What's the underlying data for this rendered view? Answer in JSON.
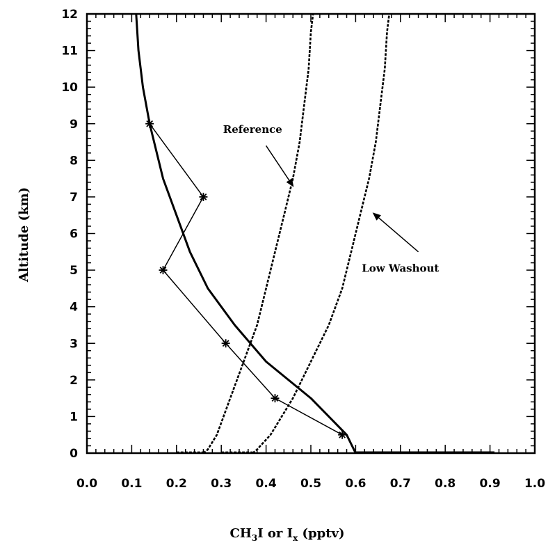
{
  "chart_data": {
    "type": "line",
    "xlabel": {
      "main": "CH",
      "sub1": "3",
      "mid": "I or I",
      "sub2": "x",
      "tail": " (pptv)"
    },
    "ylabel": "Altitude (km)",
    "xlim": [
      0.0,
      1.0
    ],
    "ylim": [
      0,
      12
    ],
    "x_ticks": [
      "0.0",
      "0.1",
      "0.2",
      "0.3",
      "0.4",
      "0.5",
      "0.6",
      "0.7",
      "0.8",
      "0.9",
      "1.0"
    ],
    "y_ticks": [
      "0",
      "1",
      "2",
      "3",
      "4",
      "5",
      "6",
      "7",
      "8",
      "9",
      "10",
      "11",
      "12"
    ],
    "grid": false,
    "series": [
      {
        "style": "solid-thick",
        "points": [
          [
            0.6,
            0.0
          ],
          [
            0.58,
            0.5
          ],
          [
            0.5,
            1.5
          ],
          [
            0.4,
            2.5
          ],
          [
            0.33,
            3.5
          ],
          [
            0.27,
            4.5
          ],
          [
            0.23,
            5.5
          ],
          [
            0.2,
            6.5
          ],
          [
            0.17,
            7.5
          ],
          [
            0.15,
            8.5
          ],
          [
            0.14,
            9.0
          ],
          [
            0.125,
            10.0
          ],
          [
            0.115,
            11.0
          ],
          [
            0.11,
            12.0
          ]
        ]
      },
      {
        "style": "solid-markers",
        "marker": "asterisk",
        "points": [
          [
            0.57,
            0.5
          ],
          [
            0.42,
            1.5
          ],
          [
            0.31,
            3.0
          ],
          [
            0.17,
            5.0
          ],
          [
            0.26,
            7.0
          ],
          [
            0.14,
            9.0
          ]
        ]
      },
      {
        "style": "dashed",
        "points": [
          [
            0.26,
            0.0
          ],
          [
            0.27,
            0.1
          ],
          [
            0.29,
            0.5
          ],
          [
            0.32,
            1.5
          ],
          [
            0.35,
            2.5
          ],
          [
            0.38,
            3.5
          ],
          [
            0.4,
            4.5
          ],
          [
            0.42,
            5.5
          ],
          [
            0.44,
            6.5
          ],
          [
            0.46,
            7.5
          ],
          [
            0.475,
            8.5
          ],
          [
            0.485,
            9.5
          ],
          [
            0.495,
            10.5
          ],
          [
            0.5,
            11.5
          ],
          [
            0.505,
            12.0
          ]
        ]
      },
      {
        "style": "dashed",
        "points": [
          [
            0.37,
            0.0
          ],
          [
            0.38,
            0.1
          ],
          [
            0.41,
            0.5
          ],
          [
            0.46,
            1.5
          ],
          [
            0.5,
            2.5
          ],
          [
            0.54,
            3.5
          ],
          [
            0.57,
            4.5
          ],
          [
            0.59,
            5.5
          ],
          [
            0.61,
            6.5
          ],
          [
            0.63,
            7.5
          ],
          [
            0.645,
            8.5
          ],
          [
            0.655,
            9.5
          ],
          [
            0.665,
            10.5
          ],
          [
            0.67,
            11.5
          ],
          [
            0.675,
            12.0
          ]
        ]
      }
    ],
    "baseline_lines": [
      {
        "style": "solid-thick",
        "x": [
          0.6,
          0.91
        ],
        "y": 0.02
      },
      {
        "style": "dashed",
        "x": [
          0.2,
          0.26
        ],
        "y": 0.02
      },
      {
        "style": "dashed",
        "x": [
          0.3,
          0.37
        ],
        "y": 0.02
      }
    ],
    "annotations": [
      {
        "text": "Reference",
        "x": 0.37,
        "y": 8.75,
        "arrow_from": [
          0.4,
          8.4
        ],
        "arrow_to": [
          0.46,
          7.3
        ]
      },
      {
        "text": "Low Washout",
        "x": 0.7,
        "y": 4.95,
        "arrow_from": [
          0.74,
          5.5
        ],
        "arrow_to": [
          0.64,
          6.55
        ]
      }
    ]
  }
}
